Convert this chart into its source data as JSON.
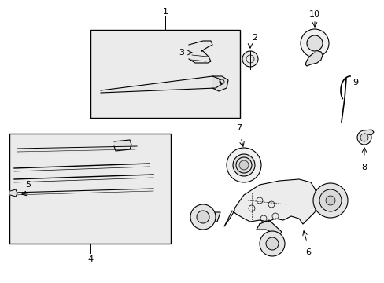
{
  "background_color": "#ffffff",
  "line_color": "#000000",
  "text_color": "#000000",
  "shading_color": "#ebebeb",
  "label_fontsize": 8,
  "fig_width": 4.89,
  "fig_height": 3.6,
  "dpi": 100
}
